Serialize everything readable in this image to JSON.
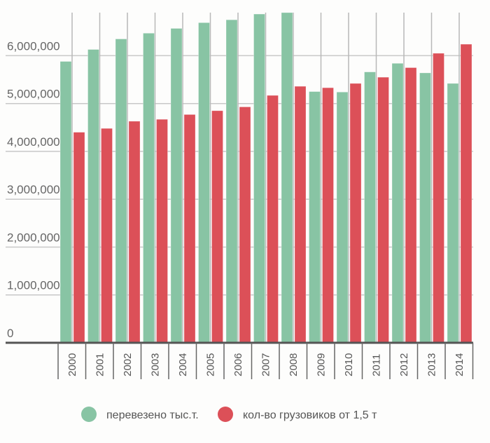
{
  "chart_data": {
    "type": "bar",
    "title": "",
    "xlabel": "",
    "ylabel": "",
    "ylim": [
      0,
      6900000
    ],
    "grid": true,
    "legend_position": "bottom",
    "yticks": [
      0,
      1000000,
      2000000,
      3000000,
      4000000,
      5000000,
      6000000
    ],
    "ytick_labels": [
      "0",
      "1,000,000",
      "2,000,000",
      "3,000,000",
      "4,000,000",
      "5,000,000",
      "6,000,000"
    ],
    "categories": [
      "2000",
      "2001",
      "2002",
      "2003",
      "2004",
      "2005",
      "2006",
      "2007",
      "2008",
      "2009",
      "2010",
      "2011",
      "2012",
      "2013",
      "2014"
    ],
    "series": [
      {
        "name": "перевезено тыс.т.",
        "color": "#88c4a4",
        "values": [
          5880000,
          6130000,
          6350000,
          6470000,
          6570000,
          6690000,
          6750000,
          6870000,
          6900000,
          5250000,
          5240000,
          5660000,
          5840000,
          5640000,
          5420000
        ]
      },
      {
        "name": "кол-во грузовиков от 1,5 т",
        "color": "#dc5058",
        "values": [
          4400000,
          4480000,
          4630000,
          4670000,
          4770000,
          4850000,
          4930000,
          5170000,
          5360000,
          5330000,
          5420000,
          5550000,
          5750000,
          6050000,
          6240000
        ]
      }
    ]
  }
}
